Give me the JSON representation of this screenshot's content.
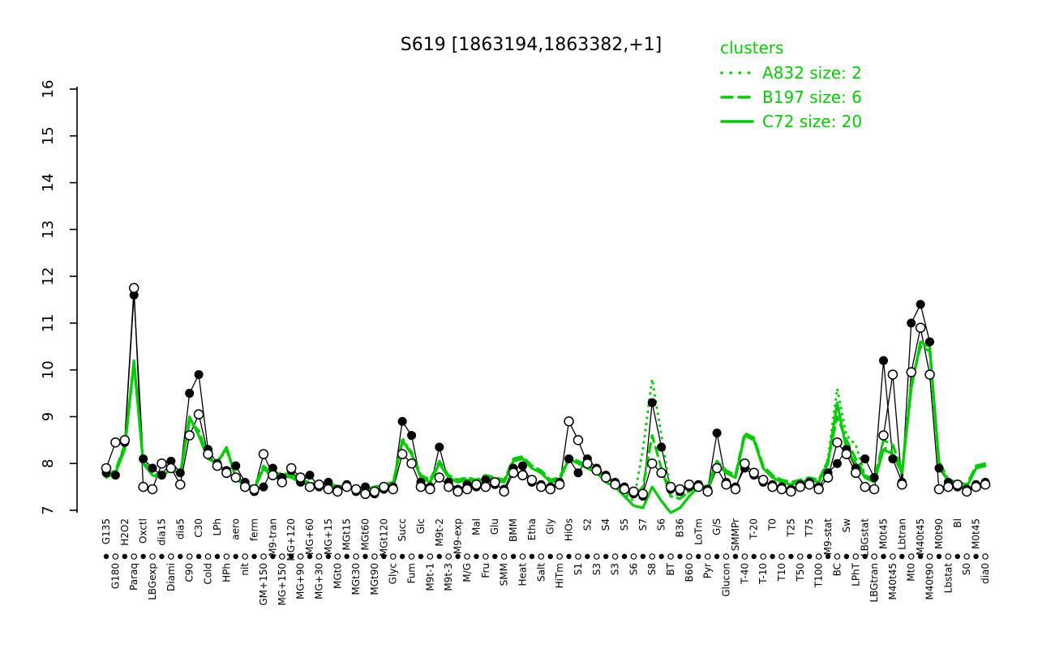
{
  "colors": {
    "cluster": "#00cd00",
    "series": "#000000",
    "background": "#ffffff"
  },
  "chart_data": {
    "type": "line",
    "title": "S619 [1863194,1863382,+1]",
    "xlabel": "",
    "ylabel": "",
    "ylim": [
      7,
      16
    ],
    "yticks": [
      7,
      8,
      9,
      10,
      11,
      12,
      13,
      14,
      15,
      16
    ],
    "grid": false,
    "legend": {
      "title": "clusters",
      "position": "top-right",
      "entries": [
        {
          "label": "A832 size: 2",
          "style": "dotted"
        },
        {
          "label": "B197 size: 6",
          "style": "dashed"
        },
        {
          "label": "C72 size: 20",
          "style": "solid"
        }
      ]
    },
    "categories": [
      "G135",
      "G180",
      "H2O2",
      "Paraq",
      "Oxctl",
      "LBGexp",
      "dia15",
      "Diami",
      "dia5",
      "C90",
      "C30",
      "Cold",
      "LPh",
      "HPh",
      "aero",
      "nit",
      "ferm",
      "GM+150",
      "M9-tran",
      "MG+150",
      "MG+120",
      "MG+90",
      "MG+60",
      "MG+30",
      "MG+15",
      "MGt0",
      "MGt15",
      "MGt30",
      "MGt60",
      "MGt90",
      "MGt120",
      "Glyc",
      "Succ",
      "Fum",
      "Glc",
      "M9t-1",
      "M9t-2",
      "M9t-3",
      "M9-exp",
      "M/G",
      "Mal",
      "Fru",
      "Glu",
      "SMM",
      "BMM",
      "Heat",
      "Etha",
      "Salt",
      "Gly",
      "HiTm",
      "HiOs",
      "S1",
      "S2",
      "S3",
      "S4",
      "S3",
      "S5",
      "S6",
      "S7",
      "S8",
      "S6",
      "BT",
      "B36",
      "B60",
      "LoTm",
      "Pyr",
      "G/S",
      "Glucon",
      "SMMPr",
      "T-40",
      "T-20",
      "T-10",
      "T0",
      "T10",
      "T25",
      "T50",
      "T75",
      "T100",
      "M9-stat",
      "BC",
      "Sw",
      "LPhT",
      "LBGstat",
      "LBGtran",
      "M0t45",
      "M40t45",
      "Lbtran",
      "Mt0",
      "M40t45",
      "M40t90",
      "M0t90",
      "Lbstat",
      "Bl",
      "S0",
      "M0t45",
      "dia0"
    ],
    "series": [
      {
        "name": "filled-markers",
        "marker": "filled-circle",
        "color": "#000000",
        "style": "solid",
        "values": [
          7.8,
          7.75,
          8.45,
          11.6,
          8.1,
          7.9,
          7.75,
          8.05,
          7.8,
          9.5,
          9.9,
          8.3,
          8.0,
          7.85,
          7.95,
          7.6,
          7.4,
          7.5,
          7.9,
          7.7,
          7.85,
          7.6,
          7.75,
          7.5,
          7.6,
          7.45,
          7.55,
          7.4,
          7.5,
          7.35,
          7.45,
          7.5,
          8.9,
          8.6,
          7.6,
          7.5,
          8.35,
          7.6,
          7.45,
          7.55,
          7.5,
          7.65,
          7.55,
          7.45,
          7.9,
          7.95,
          7.6,
          7.55,
          7.5,
          7.6,
          8.1,
          7.8,
          8.1,
          7.9,
          7.75,
          7.6,
          7.5,
          7.35,
          7.3,
          9.3,
          8.35,
          7.45,
          7.4,
          7.5,
          7.55,
          7.45,
          8.65,
          7.6,
          7.5,
          7.9,
          7.75,
          7.6,
          7.55,
          7.5,
          7.45,
          7.55,
          7.6,
          7.5,
          7.8,
          8.0,
          8.3,
          7.9,
          8.1,
          7.7,
          10.2,
          8.1,
          7.6,
          11.0,
          11.4,
          10.6,
          7.9,
          7.6,
          7.5,
          7.45,
          7.55,
          7.6
        ]
      },
      {
        "name": "open-markers",
        "marker": "open-circle",
        "color": "#000000",
        "style": "solid",
        "values": [
          7.9,
          8.45,
          8.5,
          11.75,
          7.5,
          7.45,
          8.0,
          7.9,
          7.55,
          8.6,
          9.05,
          8.2,
          7.95,
          7.8,
          7.7,
          7.5,
          7.45,
          8.2,
          7.75,
          7.6,
          7.9,
          7.7,
          7.5,
          7.55,
          7.45,
          7.4,
          7.5,
          7.45,
          7.35,
          7.4,
          7.5,
          7.45,
          8.2,
          8.0,
          7.5,
          7.45,
          7.7,
          7.5,
          7.4,
          7.45,
          7.55,
          7.5,
          7.6,
          7.4,
          7.8,
          7.75,
          7.65,
          7.5,
          7.45,
          7.55,
          8.9,
          8.5,
          8.0,
          7.85,
          7.7,
          7.55,
          7.45,
          7.4,
          7.35,
          8.0,
          7.8,
          7.5,
          7.45,
          7.55,
          7.5,
          7.4,
          7.9,
          7.55,
          7.45,
          8.0,
          7.8,
          7.65,
          7.5,
          7.45,
          7.4,
          7.5,
          7.55,
          7.45,
          7.7,
          8.45,
          8.2,
          7.8,
          7.5,
          7.45,
          8.6,
          9.9,
          7.55,
          9.95,
          10.9,
          9.9,
          7.45,
          7.5,
          7.55,
          7.4,
          7.5,
          7.55
        ]
      },
      {
        "name": "A832",
        "color": "#00cd00",
        "style": "dotted",
        "values": [
          7.7,
          7.8,
          8.35,
          10.15,
          8.0,
          7.75,
          7.7,
          7.9,
          7.75,
          8.95,
          8.65,
          8.1,
          8.0,
          8.3,
          7.7,
          7.5,
          7.45,
          7.9,
          7.7,
          7.75,
          7.7,
          7.6,
          7.55,
          7.5,
          7.55,
          7.45,
          7.5,
          7.45,
          7.4,
          7.45,
          7.5,
          7.55,
          8.55,
          8.2,
          7.7,
          7.6,
          8.0,
          7.7,
          7.6,
          7.65,
          7.6,
          7.7,
          7.65,
          7.6,
          8.05,
          8.1,
          7.9,
          7.8,
          7.6,
          7.65,
          8.1,
          8.0,
          7.9,
          7.8,
          7.6,
          7.5,
          7.35,
          7.2,
          8.3,
          9.8,
          8.6,
          7.4,
          7.3,
          7.4,
          7.5,
          7.45,
          8.0,
          7.8,
          7.7,
          8.6,
          8.5,
          7.9,
          7.7,
          7.6,
          7.55,
          7.6,
          7.65,
          7.6,
          8.1,
          9.6,
          8.6,
          8.4,
          7.75,
          7.6,
          8.35,
          8.25,
          7.8,
          9.65,
          10.55,
          10.45,
          8.0,
          7.6,
          7.55,
          7.5,
          7.9,
          7.95
        ]
      },
      {
        "name": "B197",
        "color": "#00cd00",
        "style": "dashed",
        "values": [
          7.75,
          7.85,
          8.4,
          10.1,
          8.05,
          7.8,
          7.75,
          7.95,
          7.8,
          8.9,
          8.7,
          8.15,
          8.05,
          8.3,
          7.75,
          7.55,
          7.5,
          7.95,
          7.75,
          7.8,
          7.75,
          7.65,
          7.6,
          7.55,
          7.6,
          7.5,
          7.55,
          7.5,
          7.45,
          7.5,
          7.55,
          7.6,
          8.45,
          8.25,
          7.75,
          7.65,
          8.05,
          7.75,
          7.65,
          7.7,
          7.65,
          7.75,
          7.7,
          7.65,
          8.1,
          8.15,
          7.95,
          7.85,
          7.65,
          7.7,
          8.15,
          8.05,
          7.95,
          7.85,
          7.65,
          7.55,
          7.4,
          7.3,
          7.5,
          8.6,
          7.9,
          7.3,
          7.25,
          7.4,
          7.55,
          7.5,
          8.05,
          7.85,
          7.75,
          8.65,
          8.55,
          7.95,
          7.75,
          7.65,
          7.6,
          7.65,
          7.7,
          7.65,
          8.05,
          9.0,
          8.5,
          8.1,
          7.75,
          7.65,
          8.5,
          8.4,
          7.85,
          9.7,
          10.5,
          10.4,
          8.05,
          7.65,
          7.6,
          7.55,
          7.95,
          8.0
        ]
      },
      {
        "name": "C72",
        "color": "#00cd00",
        "style": "solid",
        "values": [
          7.7,
          7.8,
          8.3,
          10.2,
          8.0,
          7.75,
          7.7,
          7.9,
          7.75,
          9.0,
          8.6,
          8.1,
          8.0,
          8.35,
          7.7,
          7.5,
          7.45,
          7.9,
          7.7,
          7.75,
          7.7,
          7.6,
          7.55,
          7.5,
          7.55,
          7.45,
          7.5,
          7.45,
          7.4,
          7.45,
          7.5,
          7.55,
          8.5,
          8.2,
          7.7,
          7.6,
          8.0,
          7.7,
          7.6,
          7.65,
          7.6,
          7.7,
          7.65,
          7.6,
          8.05,
          8.1,
          7.9,
          7.8,
          7.6,
          7.65,
          8.1,
          8.0,
          7.9,
          7.8,
          7.6,
          7.5,
          7.3,
          7.1,
          7.05,
          7.5,
          7.2,
          6.95,
          7.05,
          7.3,
          7.5,
          7.45,
          8.0,
          7.8,
          7.7,
          8.6,
          8.5,
          7.9,
          7.7,
          7.6,
          7.55,
          7.6,
          7.65,
          7.6,
          8.0,
          9.3,
          8.3,
          8.0,
          7.7,
          7.6,
          8.3,
          8.2,
          7.8,
          9.6,
          10.6,
          10.5,
          8.0,
          7.6,
          7.55,
          7.5,
          7.9,
          7.95
        ]
      }
    ]
  }
}
